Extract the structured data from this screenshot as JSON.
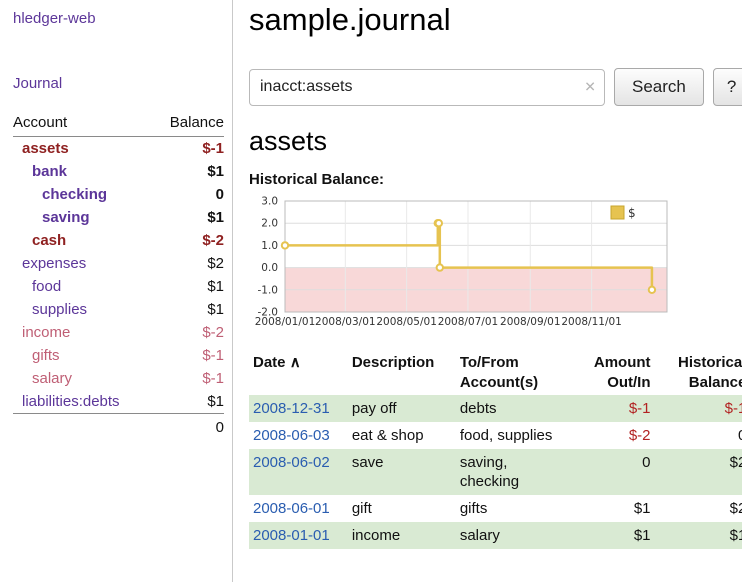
{
  "app": {
    "brand": "hledger-web",
    "nav": {
      "journal": "Journal"
    }
  },
  "colors": {
    "accent_purple": "#5c3699",
    "negative_dark_red": "#8f2121",
    "negative_soft_red": "#bf5f75",
    "table_negative_red": "#b22222",
    "date_link_blue": "#2a5db0",
    "row_green": "#d9ead3",
    "chart_gold": "#e6c350",
    "chart_negative_pink": "#f8d8d8"
  },
  "sidebar": {
    "table_header": {
      "account": "Account",
      "balance": "Balance"
    },
    "accounts": [
      {
        "name": "assets",
        "balance": "$-1"
      },
      {
        "name": "bank",
        "balance": "$1"
      },
      {
        "name": "checking",
        "balance": "0"
      },
      {
        "name": "saving",
        "balance": "$1"
      },
      {
        "name": "cash",
        "balance": "$-2"
      },
      {
        "name": "expenses",
        "balance": "$2"
      },
      {
        "name": "food",
        "balance": "$1"
      },
      {
        "name": "supplies",
        "balance": "$1"
      },
      {
        "name": "income",
        "balance": "$-2"
      },
      {
        "name": "gifts",
        "balance": "$-1"
      },
      {
        "name": "salary",
        "balance": "$-1"
      },
      {
        "name": "liabilities:debts",
        "balance": "$1"
      }
    ],
    "total": "0"
  },
  "main": {
    "title": "sample.journal",
    "search": {
      "value": "inacct:assets",
      "clear": "✕",
      "button": "Search",
      "help": "?"
    },
    "account_heading": "assets",
    "chart_label": "Historical Balance:"
  },
  "chart_data": {
    "type": "line",
    "style": "step",
    "title": "Historical Balance",
    "legend": {
      "label": "$",
      "position": "top-right"
    },
    "ylim": [
      -2,
      3
    ],
    "yticks": [
      3.0,
      2.0,
      1.0,
      0.0,
      -1.0,
      -2.0
    ],
    "xticks": [
      "2008/01/01",
      "2008/03/01",
      "2008/05/01",
      "2008/07/01",
      "2008/09/01",
      "2008/11/01"
    ],
    "xrange": [
      "2008-01-01",
      "2009-01-15"
    ],
    "series": [
      {
        "name": "$",
        "points": [
          [
            "2008-01-01",
            1.0
          ],
          [
            "2008-06-01",
            2.0
          ],
          [
            "2008-06-02",
            2.0
          ],
          [
            "2008-06-03",
            0.0
          ],
          [
            "2008-12-31",
            -1.0
          ]
        ]
      }
    ],
    "line_color": "#e6c350",
    "negative_fill": "#f8d8d8",
    "grid": true
  },
  "register": {
    "headers": {
      "date": "Date",
      "sort": "∧",
      "description": "Description",
      "tofrom1": "To/From",
      "tofrom2": "Account(s)",
      "amount1": "Amount",
      "amount2": "Out/In",
      "balance1": "Historical",
      "balance2": "Balance"
    },
    "rows": [
      {
        "date": "2008-12-31",
        "description": "pay off",
        "accounts": "debts",
        "amount": "$-1",
        "balance": "$-1"
      },
      {
        "date": "2008-06-03",
        "description": "eat & shop",
        "accounts": "food, supplies",
        "amount": "$-2",
        "balance": "0"
      },
      {
        "date": "2008-06-02",
        "description": "save",
        "accounts": "saving, checking",
        "amount": "0",
        "balance": "$2"
      },
      {
        "date": "2008-06-01",
        "description": "gift",
        "accounts": "gifts",
        "amount": "$1",
        "balance": "$2"
      },
      {
        "date": "2008-01-01",
        "description": "income",
        "accounts": "salary",
        "amount": "$1",
        "balance": "$1"
      }
    ]
  }
}
